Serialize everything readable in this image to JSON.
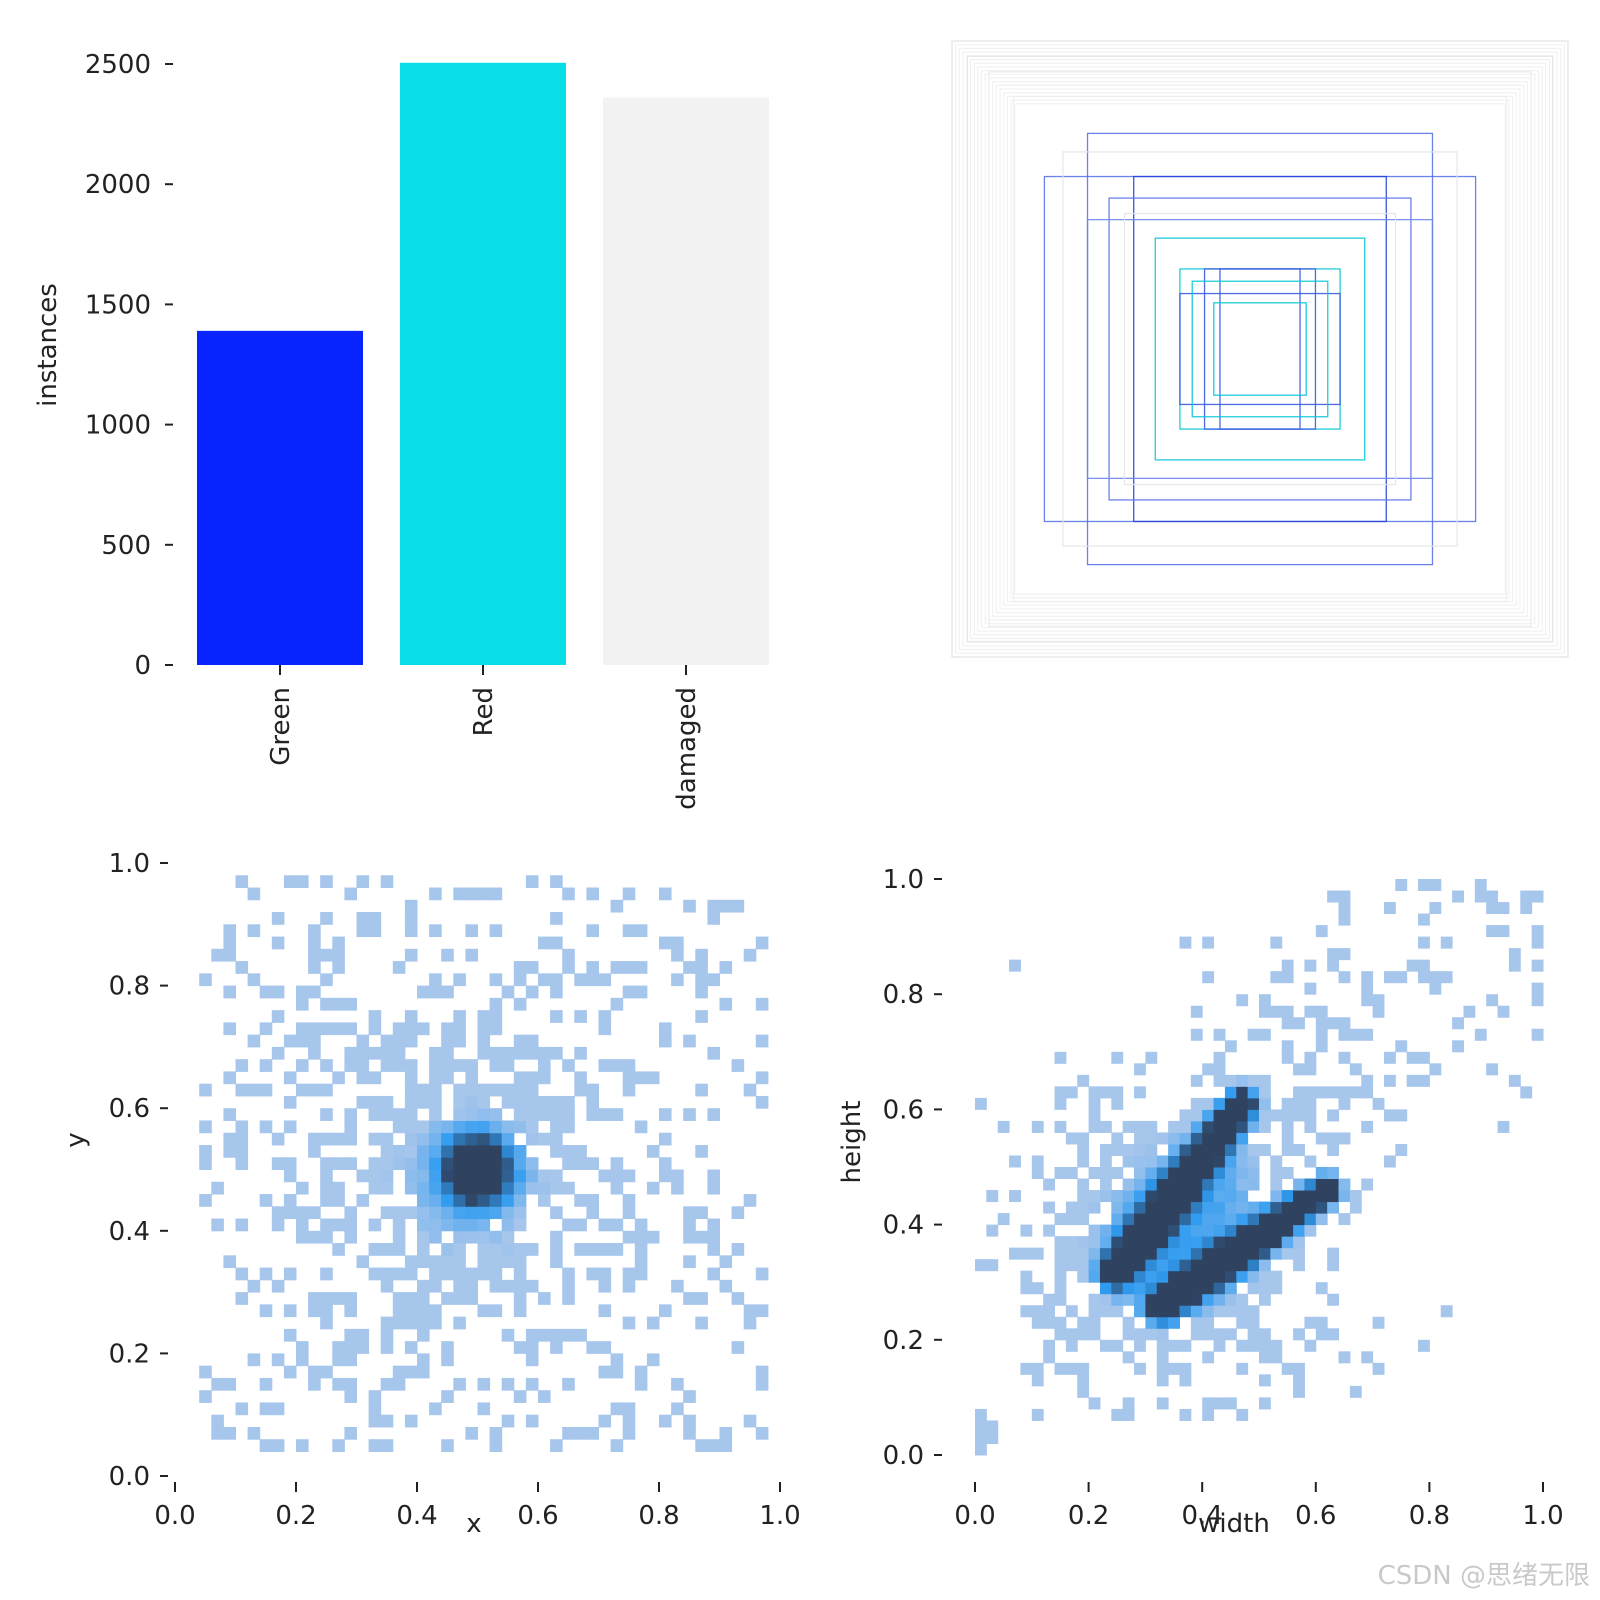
{
  "watermark": "CSDN @思绪无限",
  "chart_data": [
    {
      "type": "bar",
      "categories": [
        "Green",
        "Red",
        "damaged"
      ],
      "values": [
        1390,
        2505,
        2360
      ],
      "colors": [
        "#0a24ff",
        "#08dde8",
        "#f2f2f2"
      ],
      "ylabel": "instances",
      "xlabel": "",
      "ylim": [
        0,
        2500
      ],
      "yticks": [
        "0",
        "500",
        "1000",
        "1500",
        "2000",
        "2500"
      ],
      "ytick_values": [
        0,
        500,
        1000,
        1500,
        2000,
        2500
      ],
      "grid": false
    },
    {
      "type": "boxes",
      "description_free": true,
      "boxes": [
        {
          "w": 0.56,
          "h": 0.7,
          "color": "#5a74e8"
        },
        {
          "w": 0.7,
          "h": 0.56,
          "color": "#5a74e8"
        },
        {
          "w": 0.41,
          "h": 0.56,
          "color": "#2544d6"
        },
        {
          "w": 0.49,
          "h": 0.49,
          "color": "#5a74e8"
        },
        {
          "w": 0.56,
          "h": 0.42,
          "color": "#6f86ea"
        },
        {
          "w": 0.34,
          "h": 0.36,
          "color": "#08c8d8"
        },
        {
          "w": 0.26,
          "h": 0.26,
          "color": "#08c8d8"
        },
        {
          "w": 0.18,
          "h": 0.26,
          "color": "#3a5ae0"
        },
        {
          "w": 0.26,
          "h": 0.18,
          "color": "#3a5ae0"
        },
        {
          "w": 0.13,
          "h": 0.26,
          "color": "#3a5ae0"
        },
        {
          "w": 0.22,
          "h": 0.22,
          "color": "#08c8d8"
        },
        {
          "w": 0.15,
          "h": 0.15,
          "color": "#08c8d8"
        },
        {
          "w": 1.0,
          "h": 1.0,
          "color": "#e2e2e2"
        },
        {
          "w": 0.95,
          "h": 0.95,
          "color": "#e6e6e6"
        },
        {
          "w": 0.88,
          "h": 0.9,
          "color": "#ebebeb"
        },
        {
          "w": 0.8,
          "h": 0.82,
          "color": "#eeeeee"
        },
        {
          "w": 0.64,
          "h": 0.64,
          "color": "#e6e6e6"
        },
        {
          "w": 0.44,
          "h": 0.44,
          "color": "#e6e6e6"
        }
      ]
    },
    {
      "type": "heatmap",
      "xlabel": "x",
      "ylabel": "y",
      "xlim": [
        0,
        1
      ],
      "ylim": [
        0,
        1
      ],
      "xticks": [
        "0.0",
        "0.2",
        "0.4",
        "0.6",
        "0.8",
        "1.0"
      ],
      "yticks": [
        "0.0",
        "0.2",
        "0.4",
        "0.6",
        "0.8",
        "1.0"
      ],
      "tick_values": [
        0,
        0.2,
        0.4,
        0.6,
        0.8,
        1.0
      ],
      "bins": 50,
      "data_extent": [
        0.04,
        0.97,
        0.04,
        0.97
      ],
      "density_model": {
        "peak_center": [
          0.5,
          0.5
        ],
        "peak_sigma": 0.04,
        "peak_weight": 1.0,
        "spread_center": [
          0.48,
          0.48
        ],
        "spread_sigma": 0.17,
        "spread_weight": 0.42,
        "noise_weight": 0.11
      }
    },
    {
      "type": "heatmap",
      "xlabel": "width",
      "ylabel": "height",
      "xlim": [
        0,
        1
      ],
      "ylim": [
        0,
        1
      ],
      "xticks": [
        "0.0",
        "0.2",
        "0.4",
        "0.6",
        "0.8",
        "1.0"
      ],
      "yticks": [
        "0.0",
        "0.2",
        "0.4",
        "0.6",
        "0.8",
        "1.0"
      ],
      "tick_values": [
        0,
        0.2,
        0.4,
        0.6,
        0.8,
        1.0
      ],
      "bins": 50,
      "data_extent": [
        0.0,
        1.0,
        0.0,
        1.0
      ],
      "density_model": {
        "ridges": [
          {
            "from": [
              0.25,
              0.32
            ],
            "to": [
              0.47,
              0.61
            ],
            "sigma": 0.022,
            "weight": 1.0
          },
          {
            "from": [
              0.33,
              0.26
            ],
            "to": [
              0.62,
              0.46
            ],
            "sigma": 0.022,
            "weight": 1.0
          }
        ],
        "blob_center": [
          0.38,
          0.38
        ],
        "blob_sigma": 0.16,
        "blob_weight": 0.55,
        "diag_noise_weight": 0.18
      }
    }
  ],
  "colors": {
    "bin_light": "#a7c6ec",
    "bin_mid": "#2f9bf0",
    "bin_dark": "#2f4260"
  }
}
